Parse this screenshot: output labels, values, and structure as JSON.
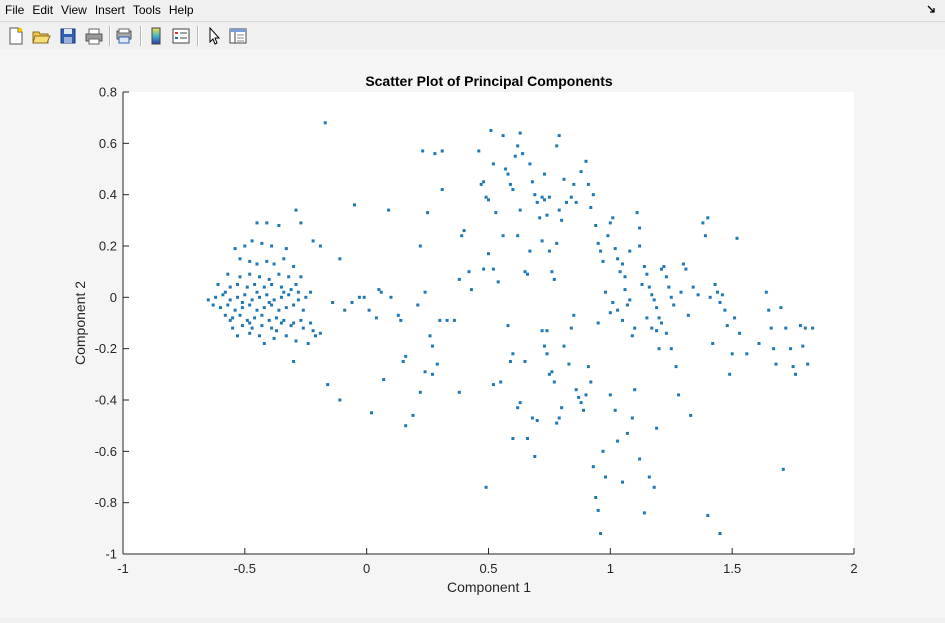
{
  "menu": [
    "File",
    "Edit",
    "View",
    "Insert",
    "Tools",
    "Help"
  ],
  "toolbar": {
    "icons": [
      "new-figure-icon",
      "open-file-icon",
      "save-icon",
      "print-icon",
      "print-preview-icon",
      "colorbar-icon",
      "legend-icon",
      "pointer-icon",
      "property-inspector-icon"
    ]
  },
  "colors": {
    "marker": "#1f77b4",
    "axes_bg": "#ffffff",
    "figure_bg": "#f5f5f5"
  },
  "chart_data": {
    "type": "scatter",
    "title": "Scatter Plot of Principal Components",
    "xlabel": "Component 1",
    "ylabel": "Component 2",
    "xlim": [
      -1,
      2
    ],
    "ylim": [
      -1,
      0.8
    ],
    "xticks": [
      "-1",
      "-0.5",
      "0",
      "0.5",
      "1",
      "1.5",
      "2"
    ],
    "yticks": [
      "0.8",
      "0.6",
      "0.4",
      "0.2",
      "0",
      "-0.2",
      "-0.4",
      "-0.6",
      "-0.8",
      "-1"
    ],
    "xtick_values": [
      -1,
      -0.5,
      0,
      0.5,
      1,
      1.5,
      2
    ],
    "ytick_values": [
      0.8,
      0.6,
      0.4,
      0.2,
      0,
      -0.2,
      -0.4,
      -0.6,
      -0.8,
      -1
    ],
    "grid": false,
    "points": [
      [
        -0.17,
        0.68
      ],
      [
        -0.45,
        0.29
      ],
      [
        -0.41,
        0.29
      ],
      [
        -0.36,
        0.28
      ],
      [
        -0.29,
        0.34
      ],
      [
        -0.27,
        0.29
      ],
      [
        -0.22,
        0.22
      ],
      [
        -0.19,
        0.2
      ],
      [
        -0.11,
        0.15
      ],
      [
        -0.54,
        0.19
      ],
      [
        -0.5,
        0.2
      ],
      [
        -0.47,
        0.22
      ],
      [
        -0.43,
        0.21
      ],
      [
        -0.39,
        0.2
      ],
      [
        -0.33,
        0.19
      ],
      [
        -0.52,
        0.15
      ],
      [
        -0.48,
        0.14
      ],
      [
        -0.45,
        0.13
      ],
      [
        -0.41,
        0.14
      ],
      [
        -0.38,
        0.13
      ],
      [
        -0.34,
        0.15
      ],
      [
        -0.3,
        0.12
      ],
      [
        -0.57,
        0.09
      ],
      [
        -0.52,
        0.08
      ],
      [
        -0.48,
        0.09
      ],
      [
        -0.44,
        0.08
      ],
      [
        -0.4,
        0.07
      ],
      [
        -0.36,
        0.09
      ],
      [
        -0.32,
        0.08
      ],
      [
        -0.27,
        0.08
      ],
      [
        -0.61,
        0.05
      ],
      [
        -0.56,
        0.04
      ],
      [
        -0.53,
        0.05
      ],
      [
        -0.49,
        0.04
      ],
      [
        -0.46,
        0.05
      ],
      [
        -0.42,
        0.04
      ],
      [
        -0.39,
        0.05
      ],
      [
        -0.35,
        0.04
      ],
      [
        -0.31,
        0.03
      ],
      [
        -0.28,
        0.02
      ],
      [
        -0.65,
        -0.01
      ],
      [
        -0.62,
        0.0
      ],
      [
        -0.59,
        0.01
      ],
      [
        -0.56,
        -0.01
      ],
      [
        -0.53,
        0.0
      ],
      [
        -0.5,
        0.01
      ],
      [
        -0.47,
        -0.01
      ],
      [
        -0.44,
        0.0
      ],
      [
        -0.41,
        0.01
      ],
      [
        -0.38,
        -0.01
      ],
      [
        -0.35,
        0.0
      ],
      [
        -0.32,
        0.01
      ],
      [
        -0.28,
        -0.01
      ],
      [
        -0.25,
        0.0
      ],
      [
        -0.63,
        -0.03
      ],
      [
        -0.6,
        -0.04
      ],
      [
        -0.57,
        -0.03
      ],
      [
        -0.54,
        -0.05
      ],
      [
        -0.51,
        -0.04
      ],
      [
        -0.48,
        -0.03
      ],
      [
        -0.45,
        -0.05
      ],
      [
        -0.42,
        -0.04
      ],
      [
        -0.39,
        -0.03
      ],
      [
        -0.36,
        -0.05
      ],
      [
        -0.33,
        -0.04
      ],
      [
        -0.3,
        -0.03
      ],
      [
        -0.26,
        -0.05
      ],
      [
        -0.58,
        -0.07
      ],
      [
        -0.55,
        -0.08
      ],
      [
        -0.52,
        -0.07
      ],
      [
        -0.49,
        -0.09
      ],
      [
        -0.46,
        -0.08
      ],
      [
        -0.43,
        -0.07
      ],
      [
        -0.4,
        -0.09
      ],
      [
        -0.37,
        -0.08
      ],
      [
        -0.34,
        -0.09
      ],
      [
        -0.3,
        -0.1
      ],
      [
        -0.27,
        -0.09
      ],
      [
        -0.23,
        -0.1
      ],
      [
        -0.55,
        -0.12
      ],
      [
        -0.51,
        -0.11
      ],
      [
        -0.47,
        -0.12
      ],
      [
        -0.43,
        -0.11
      ],
      [
        -0.39,
        -0.12
      ],
      [
        -0.35,
        -0.1
      ],
      [
        -0.31,
        -0.11
      ],
      [
        -0.26,
        -0.12
      ],
      [
        -0.22,
        -0.13
      ],
      [
        -0.21,
        -0.15
      ],
      [
        -0.53,
        -0.15
      ],
      [
        -0.48,
        -0.14
      ],
      [
        -0.44,
        -0.15
      ],
      [
        -0.38,
        -0.16
      ],
      [
        -0.33,
        -0.15
      ],
      [
        -0.29,
        -0.17
      ],
      [
        -0.19,
        -0.14
      ],
      [
        -0.42,
        -0.18
      ],
      [
        -0.24,
        -0.18
      ],
      [
        -0.3,
        -0.25
      ],
      [
        -0.58,
        0.02
      ],
      [
        -0.51,
        -0.02
      ],
      [
        -0.45,
        0.02
      ],
      [
        -0.4,
        -0.02
      ],
      [
        -0.34,
        0.02
      ],
      [
        -0.29,
        0.05
      ],
      [
        -0.23,
        0.02
      ],
      [
        -0.48,
        -0.1
      ],
      [
        -0.37,
        -0.13
      ],
      [
        -0.56,
        -0.09
      ],
      [
        -0.16,
        -0.34
      ],
      [
        -0.11,
        -0.4
      ],
      [
        -0.14,
        -0.02
      ],
      [
        -0.09,
        -0.05
      ],
      [
        -0.06,
        -0.02
      ],
      [
        -0.03,
        0.0
      ],
      [
        -0.01,
        0.0
      ],
      [
        -0.05,
        0.36
      ],
      [
        0.01,
        -0.05
      ],
      [
        0.04,
        -0.08
      ],
      [
        0.05,
        0.03
      ],
      [
        0.06,
        0.02
      ],
      [
        0.09,
        0.34
      ],
      [
        0.1,
        0.0
      ],
      [
        0.02,
        -0.45
      ],
      [
        0.07,
        -0.32
      ],
      [
        0.13,
        -0.07
      ],
      [
        0.14,
        -0.09
      ],
      [
        0.15,
        -0.25
      ],
      [
        0.16,
        -0.23
      ],
      [
        0.16,
        -0.5
      ],
      [
        0.19,
        -0.46
      ],
      [
        0.21,
        -0.03
      ],
      [
        0.22,
        0.2
      ],
      [
        0.23,
        0.57
      ],
      [
        0.24,
        0.02
      ],
      [
        0.25,
        0.33
      ],
      [
        0.24,
        -0.29
      ],
      [
        0.26,
        -0.15
      ],
      [
        0.27,
        -0.19
      ],
      [
        0.27,
        -0.3
      ],
      [
        0.28,
        0.56
      ],
      [
        0.29,
        -0.26
      ],
      [
        0.3,
        -0.09
      ],
      [
        0.31,
        0.57
      ],
      [
        0.31,
        0.42
      ],
      [
        0.33,
        -0.09
      ],
      [
        0.38,
        0.07
      ],
      [
        0.39,
        0.24
      ],
      [
        0.4,
        0.26
      ],
      [
        0.38,
        -0.37
      ],
      [
        0.43,
        0.03
      ],
      [
        0.46,
        0.57
      ],
      [
        0.47,
        0.44
      ],
      [
        0.48,
        0.45
      ],
      [
        0.49,
        0.39
      ],
      [
        0.5,
        0.38
      ],
      [
        0.51,
        0.65
      ],
      [
        0.52,
        0.52
      ],
      [
        0.53,
        0.33
      ],
      [
        0.48,
        0.11
      ],
      [
        0.5,
        0.17
      ],
      [
        0.52,
        0.11
      ],
      [
        0.49,
        -0.74
      ],
      [
        0.54,
        0.06
      ],
      [
        0.56,
        0.63
      ],
      [
        0.57,
        0.5
      ],
      [
        0.58,
        0.48
      ],
      [
        0.59,
        0.44
      ],
      [
        0.6,
        0.42
      ],
      [
        0.61,
        0.55
      ],
      [
        0.62,
        0.59
      ],
      [
        0.63,
        0.64
      ],
      [
        0.64,
        0.56
      ],
      [
        0.63,
        0.34
      ],
      [
        0.62,
        0.24
      ],
      [
        0.65,
        0.1
      ],
      [
        0.66,
        0.09
      ],
      [
        0.52,
        -0.34
      ],
      [
        0.55,
        -0.33
      ],
      [
        0.58,
        -0.11
      ],
      [
        0.59,
        -0.25
      ],
      [
        0.6,
        -0.22
      ],
      [
        0.62,
        -0.43
      ],
      [
        0.63,
        -0.41
      ],
      [
        0.65,
        -0.25
      ],
      [
        0.66,
        -0.55
      ],
      [
        0.68,
        -0.47
      ],
      [
        0.69,
        -0.62
      ],
      [
        0.7,
        -0.48
      ],
      [
        0.67,
        0.52
      ],
      [
        0.68,
        0.45
      ],
      [
        0.69,
        0.4
      ],
      [
        0.7,
        0.37
      ],
      [
        0.71,
        0.31
      ],
      [
        0.72,
        0.22
      ],
      [
        0.73,
        0.38
      ],
      [
        0.74,
        0.32
      ],
      [
        0.75,
        0.18
      ],
      [
        0.76,
        0.1
      ],
      [
        0.77,
        0.07
      ],
      [
        0.78,
        0.21
      ],
      [
        0.79,
        0.34
      ],
      [
        0.8,
        0.3
      ],
      [
        0.72,
        0.39
      ],
      [
        0.73,
        0.48
      ],
      [
        0.75,
        0.39
      ],
      [
        0.78,
        0.59
      ],
      [
        0.79,
        0.63
      ],
      [
        0.81,
        0.46
      ],
      [
        0.82,
        0.37
      ],
      [
        0.84,
        0.39
      ],
      [
        0.85,
        0.44
      ],
      [
        0.86,
        0.37
      ],
      [
        0.88,
        0.49
      ],
      [
        0.9,
        0.53
      ],
      [
        0.91,
        0.44
      ],
      [
        0.92,
        0.35
      ],
      [
        0.72,
        -0.13
      ],
      [
        0.73,
        -0.19
      ],
      [
        0.74,
        -0.22
      ],
      [
        0.75,
        -0.3
      ],
      [
        0.76,
        -0.29
      ],
      [
        0.77,
        -0.33
      ],
      [
        0.78,
        -0.49
      ],
      [
        0.79,
        -0.47
      ],
      [
        0.8,
        -0.43
      ],
      [
        0.81,
        -0.19
      ],
      [
        0.83,
        -0.26
      ],
      [
        0.84,
        -0.12
      ],
      [
        0.86,
        -0.36
      ],
      [
        0.87,
        -0.39
      ],
      [
        0.88,
        -0.41
      ],
      [
        0.89,
        -0.44
      ],
      [
        0.9,
        -0.38
      ],
      [
        0.91,
        -0.27
      ],
      [
        0.92,
        -0.33
      ],
      [
        0.93,
        -0.66
      ],
      [
        0.94,
        -0.78
      ],
      [
        0.95,
        -0.83
      ],
      [
        0.96,
        -0.92
      ],
      [
        0.97,
        -0.6
      ],
      [
        0.98,
        -0.7
      ],
      [
        0.93,
        0.4
      ],
      [
        0.94,
        0.28
      ],
      [
        0.95,
        0.21
      ],
      [
        0.96,
        0.18
      ],
      [
        0.97,
        0.14
      ],
      [
        0.99,
        0.24
      ],
      [
        1.0,
        0.29
      ],
      [
        1.01,
        0.31
      ],
      [
        1.02,
        0.19
      ],
      [
        1.03,
        0.15
      ],
      [
        1.04,
        0.1
      ],
      [
        1.05,
        0.13
      ],
      [
        1.06,
        0.08
      ],
      [
        0.98,
        0.02
      ],
      [
        1.0,
        -0.06
      ],
      [
        1.01,
        -0.02
      ],
      [
        1.03,
        -0.05
      ],
      [
        1.05,
        -0.09
      ],
      [
        1.06,
        0.03
      ],
      [
        1.07,
        -0.03
      ],
      [
        1.08,
        -0.01
      ],
      [
        1.09,
        -0.15
      ],
      [
        1.1,
        -0.12
      ],
      [
        1.11,
        0.33
      ],
      [
        1.12,
        0.2
      ],
      [
        1.13,
        0.05
      ],
      [
        1.0,
        -0.38
      ],
      [
        1.02,
        -0.44
      ],
      [
        1.03,
        -0.56
      ],
      [
        1.05,
        -0.72
      ],
      [
        1.07,
        -0.53
      ],
      [
        1.09,
        -0.47
      ],
      [
        1.1,
        -0.36
      ],
      [
        1.12,
        -0.63
      ],
      [
        1.14,
        -0.84
      ],
      [
        1.16,
        -0.7
      ],
      [
        1.18,
        -0.74
      ],
      [
        1.19,
        -0.51
      ],
      [
        1.14,
        0.12
      ],
      [
        1.15,
        0.09
      ],
      [
        1.16,
        0.04
      ],
      [
        1.17,
        0.01
      ],
      [
        1.18,
        -0.01
      ],
      [
        1.19,
        -0.04
      ],
      [
        1.2,
        -0.08
      ],
      [
        1.21,
        0.11
      ],
      [
        1.22,
        0.12
      ],
      [
        1.23,
        0.08
      ],
      [
        1.24,
        0.04
      ],
      [
        1.25,
        0.0
      ],
      [
        1.26,
        -0.03
      ],
      [
        1.15,
        -0.08
      ],
      [
        1.17,
        -0.12
      ],
      [
        1.19,
        -0.13
      ],
      [
        1.21,
        -0.1
      ],
      [
        1.23,
        -0.14
      ],
      [
        1.25,
        -0.2
      ],
      [
        1.27,
        -0.27
      ],
      [
        1.28,
        -0.38
      ],
      [
        1.29,
        0.02
      ],
      [
        1.3,
        0.13
      ],
      [
        1.31,
        0.11
      ],
      [
        1.32,
        -0.07
      ],
      [
        1.34,
        0.04
      ],
      [
        1.36,
        0.01
      ],
      [
        1.38,
        0.29
      ],
      [
        1.39,
        0.24
      ],
      [
        1.4,
        0.31
      ],
      [
        1.41,
        0.0
      ],
      [
        1.42,
        -0.18
      ],
      [
        1.43,
        0.05
      ],
      [
        1.44,
        0.02
      ],
      [
        1.45,
        -0.02
      ],
      [
        1.46,
        0.01
      ],
      [
        1.47,
        -0.05
      ],
      [
        1.48,
        -0.11
      ],
      [
        1.49,
        -0.3
      ],
      [
        1.5,
        -0.22
      ],
      [
        1.51,
        -0.08
      ],
      [
        1.52,
        0.23
      ],
      [
        1.53,
        -0.14
      ],
      [
        1.56,
        -0.22
      ],
      [
        1.61,
        -0.18
      ],
      [
        1.64,
        0.02
      ],
      [
        1.65,
        -0.05
      ],
      [
        1.66,
        -0.12
      ],
      [
        1.67,
        -0.2
      ],
      [
        1.68,
        -0.26
      ],
      [
        1.7,
        -0.04
      ],
      [
        1.72,
        -0.12
      ],
      [
        1.74,
        -0.2
      ],
      [
        1.75,
        -0.27
      ],
      [
        1.76,
        -0.3
      ],
      [
        1.78,
        -0.11
      ],
      [
        1.79,
        -0.19
      ],
      [
        1.8,
        -0.12
      ],
      [
        1.81,
        -0.26
      ],
      [
        1.83,
        -0.12
      ],
      [
        1.71,
        -0.67
      ],
      [
        1.4,
        -0.85
      ],
      [
        1.45,
        -0.92
      ],
      [
        0.22,
        -0.37
      ],
      [
        0.36,
        -0.09
      ],
      [
        0.42,
        0.1
      ],
      [
        0.56,
        0.24
      ],
      [
        0.6,
        -0.55
      ],
      [
        0.67,
        0.18
      ],
      [
        0.74,
        -0.13
      ],
      [
        0.85,
        -0.07
      ],
      [
        0.95,
        -0.1
      ],
      [
        1.08,
        0.18
      ],
      [
        1.12,
        0.27
      ],
      [
        1.2,
        -0.2
      ],
      [
        1.33,
        -0.46
      ]
    ]
  }
}
